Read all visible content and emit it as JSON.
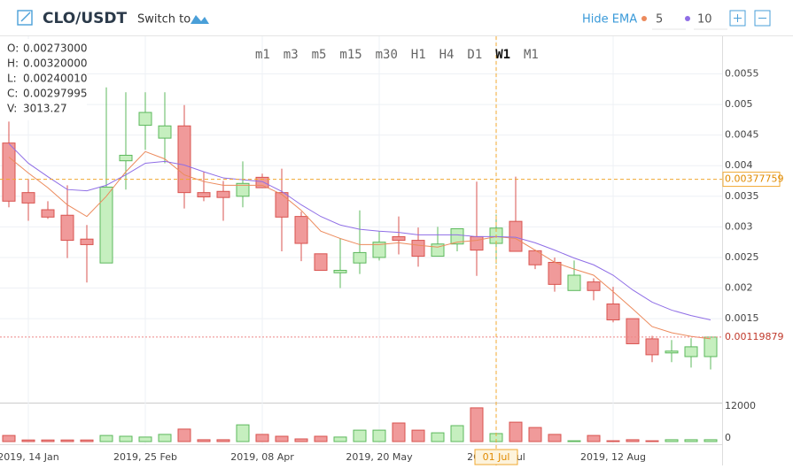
{
  "header": {
    "pair": "CLO/USDT",
    "switch_label": "Switch to",
    "ema_toggle": "Hide EMA"
  },
  "timeframes": [
    "m1",
    "m3",
    "m5",
    "m15",
    "m30",
    "H1",
    "H4",
    "D1",
    "W1",
    "M1"
  ],
  "active_timeframe": "W1",
  "ohlc_info": {
    "labels": [
      "O:",
      "H:",
      "L:",
      "C:",
      "V:"
    ],
    "values": [
      "0.00273000",
      "0.00320000",
      "0.00240010",
      "0.00297995",
      "3013.27"
    ]
  },
  "chart_data": {
    "type": "candlestick",
    "categories": [
      null,
      "2019, 14 Jan",
      null,
      null,
      null,
      null,
      null,
      "2019, 25 Feb",
      null,
      null,
      null,
      null,
      null,
      "2019, 08 Apr",
      null,
      null,
      null,
      null,
      null,
      "2019, 20 May",
      null,
      null,
      null,
      null,
      null,
      "2019, 01 Jul",
      null,
      null,
      null,
      null,
      null,
      "2019, 12 Aug",
      null,
      null,
      null,
      null,
      null
    ],
    "open": [
      0.00437,
      0.00356,
      0.00328,
      0.00319,
      0.0028,
      0.00241,
      0.00408,
      0.00466,
      0.00445,
      0.00465,
      0.00356,
      0.00358,
      0.0035,
      0.00381,
      0.00356,
      0.00317,
      0.00256,
      0.00225,
      0.00241,
      0.0025,
      0.00284,
      0.00278,
      0.00252,
      0.00272,
      0.00284,
      0.00273,
      0.00309,
      0.00261,
      0.00242,
      0.00196,
      0.0021,
      0.00174,
      0.0015,
      0.00117,
      0.00094,
      0.00088,
      0.00088
    ],
    "high": [
      0.00472,
      0.00378,
      0.00342,
      0.00368,
      0.00303,
      0.00528,
      0.0052,
      0.0052,
      0.0052,
      0.00499,
      0.0039,
      0.00375,
      0.00407,
      0.00387,
      0.00395,
      0.00325,
      0.00256,
      0.00281,
      0.00327,
      0.00293,
      0.00317,
      0.00299,
      0.003,
      0.00297,
      0.00374,
      0.0032,
      0.00382,
      0.00263,
      0.0025,
      0.00245,
      0.00216,
      0.00202,
      0.0015,
      0.00122,
      0.00115,
      0.00118,
      0.0012
    ],
    "low": [
      0.00332,
      0.0031,
      0.00313,
      0.00249,
      0.00209,
      0.00241,
      0.00361,
      0.00426,
      0.00404,
      0.0033,
      0.00342,
      0.0031,
      0.00332,
      0.00364,
      0.0026,
      0.00244,
      0.00229,
      0.002,
      0.00223,
      0.00245,
      0.00255,
      0.00235,
      0.00252,
      0.0026,
      0.0022,
      0.0024001,
      0.0026,
      0.00231,
      0.00194,
      0.00196,
      0.0018,
      0.00144,
      0.00109,
      0.00079,
      0.00079,
      0.0007,
      0.00067
    ],
    "close": [
      0.00342,
      0.00339,
      0.00316,
      0.00278,
      0.00271,
      0.00365,
      0.00417,
      0.00487,
      0.00465,
      0.00356,
      0.00349,
      0.00348,
      0.00371,
      0.00364,
      0.00316,
      0.00273,
      0.00229,
      0.00229,
      0.00258,
      0.00275,
      0.00278,
      0.00252,
      0.00272,
      0.00297,
      0.00262,
      0.00297995,
      0.0026,
      0.00238,
      0.00206,
      0.00221,
      0.00196,
      0.00148,
      0.00109,
      0.00091,
      0.00097,
      0.00104,
      0.00119879
    ],
    "volume": [
      2300,
      600,
      600,
      600,
      600,
      2300,
      2000,
      1700,
      2700,
      4700,
      700,
      700,
      6300,
      2700,
      2000,
      1000,
      2000,
      1700,
      4300,
      4300,
      7000,
      4300,
      3300,
      6000,
      12700,
      3013.27,
      7300,
      5300,
      2700,
      300,
      2300,
      300,
      700,
      300,
      700,
      700,
      700
    ],
    "series": [
      {
        "name": "5",
        "color": "#ec8a5c",
        "values": [
          0.00414,
          0.00388,
          0.00364,
          0.00336,
          0.00317,
          0.0035,
          0.0039,
          0.00423,
          0.00411,
          0.00385,
          0.00374,
          0.00368,
          0.00368,
          0.00368,
          0.00353,
          0.00327,
          0.00293,
          0.00281,
          0.00271,
          0.00271,
          0.00274,
          0.0027,
          0.00267,
          0.00275,
          0.00278,
          0.00284,
          0.00281,
          0.00262,
          0.00242,
          0.00231,
          0.00221,
          0.00194,
          0.00166,
          0.00137,
          0.00127,
          0.00121,
          0.00117
        ]
      },
      {
        "name": "10",
        "color": "#8f6ee6",
        "values": [
          0.00436,
          0.00404,
          0.00382,
          0.00361,
          0.00359,
          0.00368,
          0.00385,
          0.00404,
          0.00407,
          0.00401,
          0.0039,
          0.0038,
          0.00377,
          0.00374,
          0.00358,
          0.00336,
          0.00317,
          0.00303,
          0.00296,
          0.00293,
          0.00291,
          0.00287,
          0.00287,
          0.00287,
          0.00284,
          0.00284,
          0.00283,
          0.00274,
          0.00262,
          0.00249,
          0.00238,
          0.00221,
          0.00197,
          0.00177,
          0.00164,
          0.00155,
          0.00148
        ]
      }
    ],
    "up_color": "#c6efbf",
    "up_border": "#5cb85c",
    "down_color": "#f09a9a",
    "down_border": "#d9534f",
    "ylim": [
      0.0002,
      0.0061
    ],
    "yticks": [
      0.0015,
      0.002,
      0.0025,
      0.003,
      0.0035,
      0.004,
      0.0045,
      0.005,
      0.0055
    ],
    "volume_ylim": [
      0,
      14000
    ],
    "volume_yticks": [
      0,
      12000
    ],
    "grid": true,
    "crosshair": {
      "price": 0.00377759,
      "date_label": "01 Jul",
      "index": 25
    },
    "last_price": 0.00119879
  }
}
